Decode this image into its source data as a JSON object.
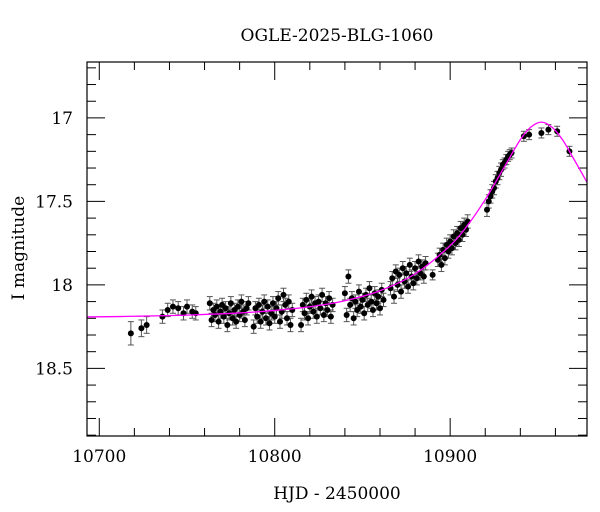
{
  "chart_data": {
    "type": "scatter",
    "title": "OGLE-2025-BLG-1060",
    "xlabel": "HJD - 2450000",
    "ylabel": "I magnitude",
    "xlim": [
      10693,
      10978
    ],
    "ylim": [
      18.905,
      16.665
    ],
    "y_inverted": true,
    "grid": false,
    "x_ticks": [
      10700,
      10800,
      10900
    ],
    "x_tick_labels": [
      "10700",
      "10800",
      "10900"
    ],
    "y_ticks": [
      17,
      17.5,
      18,
      18.5
    ],
    "y_tick_labels": [
      "17",
      "17.5",
      "18",
      "18.5"
    ],
    "colors": {
      "data": "#000000",
      "errorbar": "#555555",
      "model": "#ff00ff"
    },
    "series": [
      {
        "kind": "data-with-errorbars",
        "points": [
          [
            10718,
            18.29,
            0.07
          ],
          [
            10724,
            18.26,
            0.05
          ],
          [
            10727,
            18.24,
            0.05
          ],
          [
            10736,
            18.19,
            0.04
          ],
          [
            10739,
            18.15,
            0.04
          ],
          [
            10742,
            18.13,
            0.04
          ],
          [
            10745,
            18.14,
            0.04
          ],
          [
            10748,
            18.17,
            0.04
          ],
          [
            10750,
            18.13,
            0.04
          ],
          [
            10753,
            18.16,
            0.04
          ],
          [
            10755,
            18.17,
            0.04
          ],
          [
            10763,
            18.11,
            0.04
          ],
          [
            10764,
            18.21,
            0.04
          ],
          [
            10765,
            18.15,
            0.04
          ],
          [
            10766,
            18.18,
            0.04
          ],
          [
            10767,
            18.13,
            0.04
          ],
          [
            10768,
            18.22,
            0.04
          ],
          [
            10769,
            18.16,
            0.04
          ],
          [
            10770,
            18.12,
            0.04
          ],
          [
            10771,
            18.19,
            0.04
          ],
          [
            10772,
            18.14,
            0.04
          ],
          [
            10773,
            18.24,
            0.04
          ],
          [
            10774,
            18.17,
            0.04
          ],
          [
            10775,
            18.11,
            0.04
          ],
          [
            10776,
            18.2,
            0.04
          ],
          [
            10777,
            18.15,
            0.04
          ],
          [
            10778,
            18.22,
            0.04
          ],
          [
            10779,
            18.13,
            0.04
          ],
          [
            10780,
            18.18,
            0.04
          ],
          [
            10781,
            18.1,
            0.04
          ],
          [
            10782,
            18.16,
            0.04
          ],
          [
            10783,
            18.21,
            0.04
          ],
          [
            10784,
            18.14,
            0.04
          ],
          [
            10785,
            18.11,
            0.04
          ],
          [
            10788,
            18.25,
            0.04
          ],
          [
            10789,
            18.14,
            0.04
          ],
          [
            10790,
            18.19,
            0.04
          ],
          [
            10791,
            18.12,
            0.04
          ],
          [
            10792,
            18.22,
            0.04
          ],
          [
            10793,
            18.16,
            0.04
          ],
          [
            10794,
            18.1,
            0.04
          ],
          [
            10795,
            18.2,
            0.04
          ],
          [
            10796,
            18.13,
            0.04
          ],
          [
            10797,
            18.23,
            0.04
          ],
          [
            10798,
            18.17,
            0.04
          ],
          [
            10799,
            18.11,
            0.04
          ],
          [
            10800,
            18.19,
            0.04
          ],
          [
            10801,
            18.14,
            0.04
          ],
          [
            10802,
            18.08,
            0.04
          ],
          [
            10803,
            18.22,
            0.04
          ],
          [
            10804,
            18.16,
            0.04
          ],
          [
            10805,
            18.06,
            0.04
          ],
          [
            10806,
            18.12,
            0.04
          ],
          [
            10807,
            18.2,
            0.04
          ],
          [
            10808,
            18.1,
            0.04
          ],
          [
            10809,
            18.24,
            0.04
          ],
          [
            10810,
            18.15,
            0.04
          ],
          [
            10815,
            18.24,
            0.04
          ],
          [
            10816,
            18.12,
            0.04
          ],
          [
            10817,
            18.17,
            0.04
          ],
          [
            10818,
            18.09,
            0.04
          ],
          [
            10819,
            18.2,
            0.04
          ],
          [
            10820,
            18.13,
            0.04
          ],
          [
            10821,
            18.07,
            0.04
          ],
          [
            10822,
            18.16,
            0.04
          ],
          [
            10823,
            18.11,
            0.04
          ],
          [
            10824,
            18.19,
            0.04
          ],
          [
            10825,
            18.1,
            0.04
          ],
          [
            10826,
            18.14,
            0.04
          ],
          [
            10827,
            18.06,
            0.04
          ],
          [
            10828,
            18.18,
            0.04
          ],
          [
            10829,
            18.11,
            0.04
          ],
          [
            10830,
            18.15,
            0.04
          ],
          [
            10831,
            18.08,
            0.04
          ],
          [
            10832,
            18.19,
            0.04
          ],
          [
            10833,
            18.12,
            0.04
          ],
          [
            10840,
            18.05,
            0.04
          ],
          [
            10841,
            18.18,
            0.04
          ],
          [
            10842,
            17.95,
            0.04
          ],
          [
            10843,
            18.12,
            0.04
          ],
          [
            10844,
            18.08,
            0.04
          ],
          [
            10845,
            18.2,
            0.04
          ],
          [
            10846,
            18.1,
            0.04
          ],
          [
            10847,
            18.15,
            0.04
          ],
          [
            10848,
            18.04,
            0.04
          ],
          [
            10849,
            18.13,
            0.04
          ],
          [
            10850,
            18.09,
            0.04
          ],
          [
            10851,
            18.17,
            0.04
          ],
          [
            10852,
            18.06,
            0.04
          ],
          [
            10853,
            18.12,
            0.04
          ],
          [
            10854,
            18.02,
            0.04
          ],
          [
            10855,
            18.1,
            0.04
          ],
          [
            10856,
            18.15,
            0.04
          ],
          [
            10857,
            18.05,
            0.04
          ],
          [
            10858,
            18.11,
            0.04
          ],
          [
            10859,
            18.07,
            0.04
          ],
          [
            10860,
            18.14,
            0.04
          ],
          [
            10861,
            18.03,
            0.04
          ],
          [
            10862,
            18.09,
            0.04
          ],
          [
            10866,
            18.02,
            0.04
          ],
          [
            10867,
            17.96,
            0.04
          ],
          [
            10868,
            18.07,
            0.04
          ],
          [
            10869,
            17.92,
            0.04
          ],
          [
            10870,
            18.0,
            0.04
          ],
          [
            10871,
            17.94,
            0.04
          ],
          [
            10872,
            18.04,
            0.04
          ],
          [
            10873,
            17.9,
            0.04
          ],
          [
            10874,
            17.98,
            0.04
          ],
          [
            10875,
            17.93,
            0.04
          ],
          [
            10876,
            18.01,
            0.04
          ],
          [
            10877,
            17.88,
            0.04
          ],
          [
            10878,
            17.95,
            0.04
          ],
          [
            10879,
            17.99,
            0.04
          ],
          [
            10880,
            17.9,
            0.04
          ],
          [
            10881,
            17.96,
            0.04
          ],
          [
            10882,
            17.86,
            0.04
          ],
          [
            10883,
            17.93,
            0.04
          ],
          [
            10884,
            17.89,
            0.04
          ],
          [
            10885,
            17.95,
            0.04
          ],
          [
            10886,
            17.87,
            0.04
          ],
          [
            10890,
            17.94,
            0.03
          ],
          [
            10893,
            17.85,
            0.04
          ],
          [
            10894,
            17.82,
            0.04
          ],
          [
            10895,
            17.88,
            0.04
          ],
          [
            10896,
            17.79,
            0.04
          ],
          [
            10897,
            17.84,
            0.04
          ],
          [
            10898,
            17.76,
            0.04
          ],
          [
            10899,
            17.8,
            0.04
          ],
          [
            10900,
            17.74,
            0.04
          ],
          [
            10901,
            17.78,
            0.04
          ],
          [
            10902,
            17.71,
            0.04
          ],
          [
            10903,
            17.75,
            0.04
          ],
          [
            10904,
            17.69,
            0.04
          ],
          [
            10905,
            17.73,
            0.04
          ],
          [
            10906,
            17.66,
            0.04
          ],
          [
            10907,
            17.7,
            0.04
          ],
          [
            10908,
            17.64,
            0.04
          ],
          [
            10909,
            17.67,
            0.04
          ],
          [
            10910,
            17.62,
            0.04
          ],
          [
            10921,
            17.55,
            0.04
          ],
          [
            10922,
            17.5,
            0.04
          ],
          [
            10923,
            17.47,
            0.04
          ],
          [
            10924,
            17.44,
            0.04
          ],
          [
            10925,
            17.42,
            0.04
          ],
          [
            10926,
            17.38,
            0.04
          ],
          [
            10927,
            17.36,
            0.04
          ],
          [
            10928,
            17.33,
            0.04
          ],
          [
            10929,
            17.31,
            0.04
          ],
          [
            10930,
            17.28,
            0.03
          ],
          [
            10931,
            17.27,
            0.03
          ],
          [
            10932,
            17.25,
            0.03
          ],
          [
            10933,
            17.23,
            0.03
          ],
          [
            10934,
            17.22,
            0.03
          ],
          [
            10935,
            17.21,
            0.03
          ],
          [
            10942,
            17.11,
            0.03
          ],
          [
            10945,
            17.1,
            0.03
          ],
          [
            10952,
            17.09,
            0.03
          ],
          [
            10956,
            17.07,
            0.03
          ],
          [
            10961,
            17.08,
            0.03
          ],
          [
            10968,
            17.2,
            0.03
          ]
        ]
      },
      {
        "kind": "model-curve",
        "x": [
          10693,
          10720,
          10750,
          10780,
          10800,
          10820,
          10840,
          10860,
          10880,
          10900,
          10910,
          10920,
          10930,
          10940,
          10946,
          10952,
          10958,
          10964,
          10970,
          10978
        ],
        "y": [
          18.192,
          18.188,
          18.181,
          18.168,
          18.153,
          18.131,
          18.095,
          18.035,
          17.934,
          17.765,
          17.642,
          17.489,
          17.31,
          17.13,
          17.055,
          17.025,
          17.055,
          17.13,
          17.237,
          17.385
        ]
      }
    ]
  }
}
